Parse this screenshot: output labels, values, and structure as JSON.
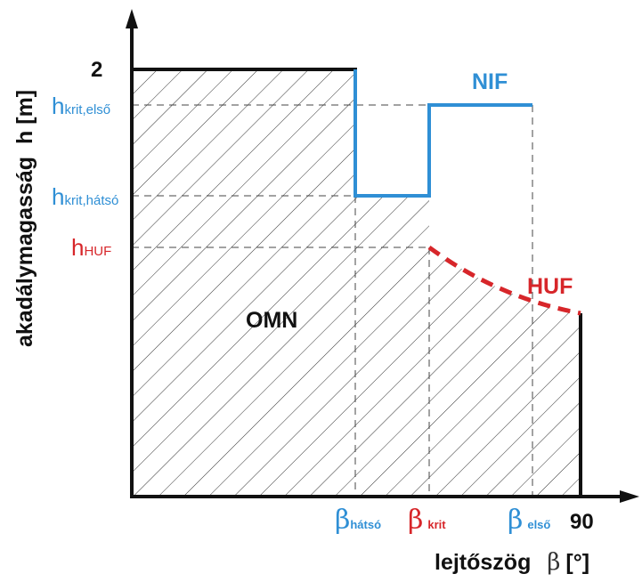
{
  "y_axis": {
    "label_main": "akadálymagasság",
    "label_symbol": "h [m]",
    "top_value": "2",
    "ticks": [
      {
        "main": "h",
        "sub": "krit,első",
        "color": "#2f8fd5"
      },
      {
        "main": "h",
        "sub": "krit,hátsó",
        "color": "#2f8fd5"
      },
      {
        "main": "h",
        "sub": "HUF",
        "color": "#d7262a"
      }
    ]
  },
  "x_axis": {
    "label_main": "lejtőszög",
    "label_symbol": "β",
    "label_unit": "[°]",
    "end_value": "90",
    "ticks": [
      {
        "main": "β",
        "sub": "hátsó",
        "color": "#2f8fd5"
      },
      {
        "main": "β",
        "sub": "krit",
        "color": "#d7262a"
      },
      {
        "main": "β",
        "sub": "első",
        "color": "#2f8fd5"
      }
    ]
  },
  "regions": {
    "omn_label": "OMN",
    "nif_label": "NIF",
    "huf_label": "HUF"
  },
  "colors": {
    "axis": "#111111",
    "blue": "#2f8fd5",
    "red": "#d7262a",
    "hatch": "#333333"
  }
}
